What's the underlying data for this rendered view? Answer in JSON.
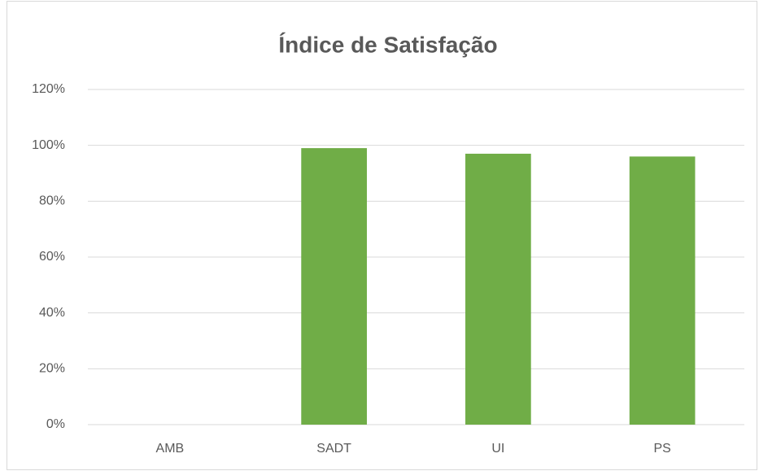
{
  "chart_data": {
    "type": "bar",
    "title": "Índice de Satisfação",
    "categories": [
      "AMB",
      "SADT",
      "UI",
      "PS"
    ],
    "values": [
      0,
      99,
      97,
      96
    ],
    "color": "#70ad47",
    "ylim": [
      0,
      120
    ],
    "yticks": [
      {
        "value": 0,
        "label": "0%"
      },
      {
        "value": 20,
        "label": "20%"
      },
      {
        "value": 40,
        "label": "40%"
      },
      {
        "value": 60,
        "label": "60%"
      },
      {
        "value": 80,
        "label": "80%"
      },
      {
        "value": 100,
        "label": "100%"
      },
      {
        "value": 120,
        "label": "120%"
      }
    ],
    "grid": true
  }
}
